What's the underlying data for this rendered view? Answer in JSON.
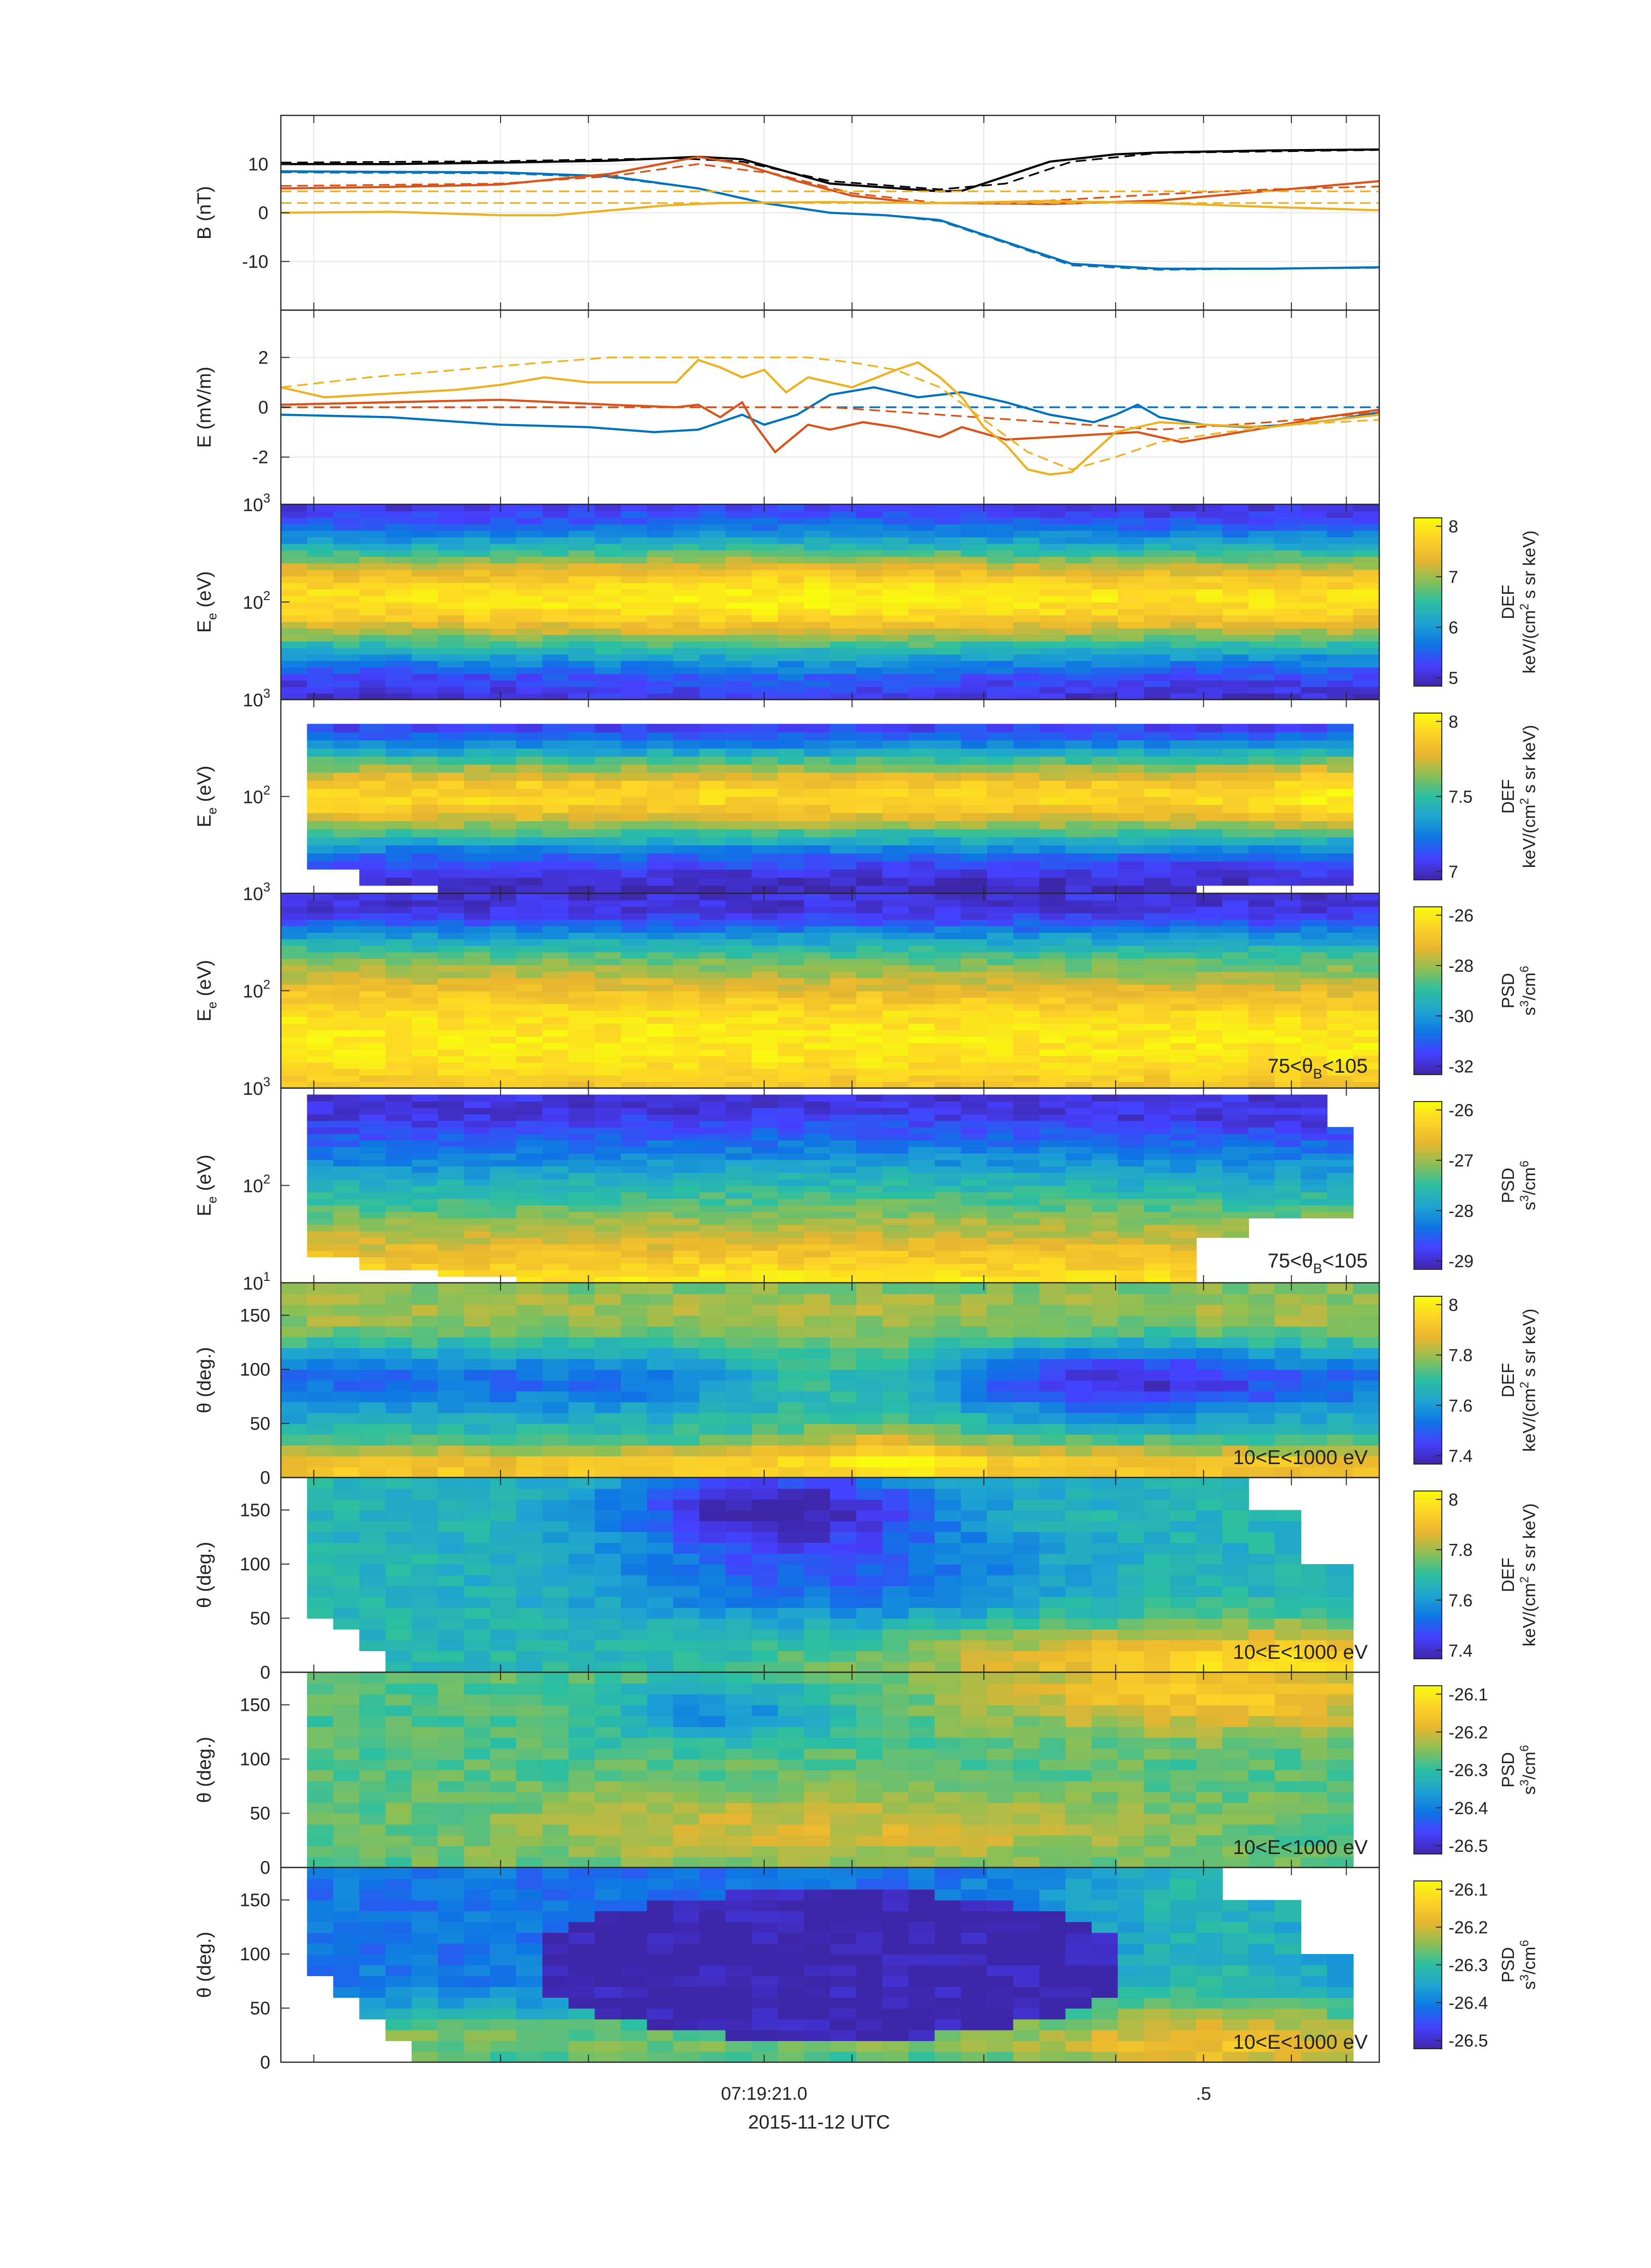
{
  "xaxis": {
    "tick_labels": [
      "07:19:21.0",
      ".5"
    ],
    "label": "2015-11-12 UTC"
  },
  "colors": {
    "bx": "#0072bd",
    "by": "#d95319",
    "bz": "#edb120",
    "bt": "#000000",
    "grid": "#e6e6e6",
    "frame": "#262626"
  },
  "colormap": [
    "#3e26a8",
    "#4640ff",
    "#0f75e5",
    "#1ea4d1",
    "#2bbfa1",
    "#8bbf56",
    "#e8b52f",
    "#fdd327",
    "#f9fb0e"
  ],
  "chart_data": [
    {
      "id": "B",
      "type": "line",
      "ylabel": "B (nT)",
      "yticks": [
        "10",
        "0",
        "-10"
      ],
      "ylim": [
        -20,
        20
      ],
      "series": [
        {
          "color_key": "bt",
          "x": [
            0,
            0.1,
            0.2,
            0.3,
            0.38,
            0.42,
            0.46,
            0.5,
            0.55,
            0.6,
            0.62,
            0.66,
            0.7,
            0.76,
            0.8,
            0.9,
            1.0
          ],
          "values": [
            10,
            10,
            10.3,
            10.7,
            11.5,
            11,
            8.5,
            6,
            5.2,
            4.4,
            4.5,
            7.5,
            10.5,
            12,
            12.4,
            12.8,
            13
          ]
        },
        {
          "color_key": "bt",
          "dashed": true,
          "x": [
            0,
            0.2,
            0.36,
            0.42,
            0.5,
            0.6,
            0.66,
            0.72,
            0.8,
            1.0
          ],
          "values": [
            10.3,
            10.6,
            11.2,
            10.5,
            6.5,
            4.8,
            6,
            10.5,
            12.3,
            12.9
          ]
        },
        {
          "color_key": "bx",
          "x": [
            0,
            0.2,
            0.3,
            0.38,
            0.44,
            0.5,
            0.55,
            0.6,
            0.66,
            0.72,
            0.8,
            0.9,
            1.0
          ],
          "values": [
            8.5,
            8.3,
            7.5,
            5,
            2,
            0,
            -0.5,
            -1.5,
            -6,
            -10.5,
            -11.5,
            -11.5,
            -11.2
          ]
        },
        {
          "color_key": "bx",
          "dashed": true,
          "x": [
            0,
            0.2,
            0.3,
            0.38,
            0.44,
            0.5,
            0.55,
            0.6,
            0.66,
            0.72,
            0.8,
            1.0
          ],
          "values": [
            8.3,
            8.1,
            7.3,
            5,
            2,
            0,
            -0.5,
            -1.7,
            -6.2,
            -10.8,
            -11.7,
            -11.3
          ]
        },
        {
          "color_key": "by",
          "x": [
            0,
            0.1,
            0.2,
            0.3,
            0.38,
            0.42,
            0.47,
            0.52,
            0.58,
            0.62,
            0.7,
            0.8,
            0.9,
            1.0
          ],
          "values": [
            5,
            5.3,
            5.8,
            8,
            11.5,
            10,
            6.5,
            3.5,
            2,
            2,
            1.8,
            2.5,
            4.5,
            6.5
          ]
        },
        {
          "color_key": "by",
          "dashed": true,
          "x": [
            0,
            0.2,
            0.3,
            0.38,
            0.45,
            0.52,
            0.6,
            0.7,
            0.8,
            0.9,
            1.0
          ],
          "values": [
            5.5,
            6,
            7.5,
            10,
            8,
            4,
            2,
            2.5,
            3.8,
            4.8,
            5.4
          ]
        },
        {
          "color_key": "bz",
          "x": [
            0,
            0.1,
            0.2,
            0.25,
            0.3,
            0.35,
            0.4,
            0.5,
            0.6,
            0.7,
            0.8,
            0.9,
            1.0
          ],
          "values": [
            0,
            0.2,
            -0.5,
            -0.5,
            0.5,
            1.5,
            2,
            2.2,
            2,
            2.4,
            2,
            1.2,
            0.5
          ]
        },
        {
          "color_key": "bz",
          "dashed": true,
          "x": [
            0,
            0.2,
            0.4,
            0.6,
            0.8,
            1.0
          ],
          "values": [
            2,
            2,
            2,
            2,
            2,
            2
          ]
        },
        {
          "color_key": "bz",
          "dashed": true,
          "x": [
            0,
            0.4,
            0.8,
            1.0
          ],
          "values": [
            4.4,
            4.4,
            4.4,
            4.4
          ]
        }
      ]
    },
    {
      "id": "E",
      "type": "line",
      "ylabel": "E (mV/m)",
      "yticks": [
        "2",
        "0",
        "-2"
      ],
      "ylim": [
        -3.9,
        3.9
      ],
      "series": [
        {
          "color_key": "bx",
          "x": [
            0,
            0.1,
            0.2,
            0.28,
            0.34,
            0.38,
            0.4,
            0.42,
            0.44,
            0.47,
            0.5,
            0.54,
            0.58,
            0.6,
            0.62,
            0.66,
            0.7,
            0.74,
            0.76,
            0.78,
            0.8,
            0.84,
            0.88,
            0.92,
            0.96,
            1.0
          ],
          "values": [
            -0.3,
            -0.4,
            -0.7,
            -0.8,
            -1,
            -0.9,
            -0.6,
            -0.3,
            -0.7,
            -0.3,
            0.5,
            0.8,
            0.4,
            0.5,
            0.6,
            0.2,
            -0.3,
            -0.6,
            -0.3,
            0.1,
            -0.4,
            -0.7,
            -0.8,
            -0.7,
            -0.5,
            -0.2
          ]
        },
        {
          "color_key": "bx",
          "dashed": true,
          "x": [
            0,
            1.0
          ],
          "values": [
            0,
            0
          ]
        },
        {
          "color_key": "by",
          "x": [
            0,
            0.1,
            0.2,
            0.3,
            0.36,
            0.38,
            0.4,
            0.42,
            0.43,
            0.45,
            0.48,
            0.5,
            0.53,
            0.56,
            0.6,
            0.62,
            0.66,
            0.7,
            0.74,
            0.78,
            0.82,
            0.86,
            0.9,
            0.95,
            1.0
          ],
          "values": [
            0.1,
            0.2,
            0.3,
            0.1,
            0,
            0.1,
            -0.4,
            0.2,
            -0.6,
            -1.8,
            -0.7,
            -0.9,
            -0.6,
            -0.8,
            -1.2,
            -0.8,
            -1.3,
            -1.2,
            -1.1,
            -1,
            -1.4,
            -1.1,
            -0.8,
            -0.4,
            -0.1
          ]
        },
        {
          "color_key": "by",
          "dashed": true,
          "x": [
            0,
            0.3,
            0.5,
            0.6,
            0.7,
            0.8,
            0.9,
            1.0
          ],
          "values": [
            0,
            0,
            0,
            -0.3,
            -0.6,
            -0.9,
            -0.6,
            -0.2
          ]
        },
        {
          "color_key": "bz",
          "x": [
            0,
            0.04,
            0.08,
            0.12,
            0.16,
            0.2,
            0.24,
            0.28,
            0.32,
            0.36,
            0.38,
            0.4,
            0.42,
            0.44,
            0.46,
            0.48,
            0.52,
            0.56,
            0.58,
            0.6,
            0.62,
            0.64,
            0.66,
            0.68,
            0.7,
            0.72,
            0.74,
            0.76,
            0.8,
            0.84,
            0.9,
            0.96,
            1.0
          ],
          "values": [
            0.8,
            0.4,
            0.5,
            0.6,
            0.7,
            0.9,
            1.2,
            1,
            1,
            1,
            1.9,
            1.6,
            1.2,
            1.5,
            0.6,
            1.2,
            0.8,
            1.5,
            1.8,
            1.2,
            0.4,
            -0.8,
            -1.5,
            -2.5,
            -2.7,
            -2.6,
            -1.8,
            -1,
            -0.6,
            -0.7,
            -0.8,
            -0.5,
            -0.3
          ]
        },
        {
          "color_key": "bz",
          "dashed": true,
          "x": [
            0,
            0.08,
            0.16,
            0.24,
            0.3,
            0.36,
            0.42,
            0.48,
            0.52,
            0.56,
            0.6,
            0.64,
            0.68,
            0.72,
            0.76,
            0.8,
            0.86,
            0.92,
            1.0
          ],
          "values": [
            0.8,
            1.2,
            1.5,
            1.8,
            2,
            2,
            2,
            2,
            1.8,
            1.5,
            0.8,
            -0.5,
            -1.8,
            -2.5,
            -2,
            -1.4,
            -1,
            -0.7,
            -0.5
          ]
        }
      ]
    },
    {
      "id": "Ee1",
      "type": "heatmap",
      "ylabel_main": "E",
      "ylabel_sub": "e",
      "ylabel_unit": " (eV)",
      "ytick_bases": [
        "10",
        "10"
      ],
      "ytick_exps": [
        "3",
        "2"
      ],
      "colorbar_ticks": [
        "8",
        "7",
        "6",
        "5"
      ],
      "colorbar_label_1": "DEF",
      "colorbar_label_2": "keV/(cm",
      "colorbar_label_sup": "2",
      "colorbar_label_3": " s sr keV)"
    },
    {
      "id": "Ee2",
      "type": "heatmap",
      "ylabel_main": "E",
      "ylabel_sub": "e",
      "ylabel_unit": " (eV)",
      "ytick_bases": [
        "10",
        "10"
      ],
      "ytick_exps": [
        "3",
        "2"
      ],
      "colorbar_ticks": [
        "8",
        "7.5",
        "7"
      ],
      "colorbar_label_1": "DEF",
      "colorbar_label_2": "keV/(cm",
      "colorbar_label_sup": "2",
      "colorbar_label_3": " s sr keV)"
    },
    {
      "id": "Ee3",
      "type": "heatmap",
      "ylabel_main": "E",
      "ylabel_sub": "e",
      "ylabel_unit": " (eV)",
      "ytick_bases": [
        "10",
        "10"
      ],
      "ytick_exps": [
        "3",
        "2"
      ],
      "colorbar_ticks": [
        "-26",
        "-28",
        "-30",
        "-32"
      ],
      "colorbar_label_1": "PSD",
      "colorbar_label_2": "s",
      "colorbar_label_sup": "3",
      "colorbar_label_3": "/cm",
      "colorbar_label_sup2": "6",
      "annotation_pre": "75<θ",
      "annotation_sub": "B",
      "annotation_post": "<105"
    },
    {
      "id": "Ee4",
      "type": "heatmap",
      "ylabel_main": "E",
      "ylabel_sub": "e",
      "ylabel_unit": " (eV)",
      "ytick_bases": [
        "10",
        "10",
        "10"
      ],
      "ytick_exps": [
        "3",
        "2",
        "1"
      ],
      "colorbar_ticks": [
        "-26",
        "-27",
        "-28",
        "-29"
      ],
      "colorbar_label_1": "PSD",
      "colorbar_label_2": "s",
      "colorbar_label_sup": "3",
      "colorbar_label_3": "/cm",
      "colorbar_label_sup2": "6",
      "annotation_pre": "75<θ",
      "annotation_sub": "B",
      "annotation_post": "<105"
    },
    {
      "id": "th1",
      "type": "heatmap",
      "ylabel": "θ (deg.)",
      "yticks": [
        "150",
        "100",
        "50",
        "0"
      ],
      "colorbar_ticks": [
        "8",
        "7.8",
        "7.6",
        "7.4"
      ],
      "colorbar_label_1": "DEF",
      "colorbar_label_2": "keV/(cm",
      "colorbar_label_sup": "2",
      "colorbar_label_3": " s sr keV)",
      "annotation": "10<E<1000 eV"
    },
    {
      "id": "th2",
      "type": "heatmap",
      "ylabel": "θ (deg.)",
      "yticks": [
        "150",
        "100",
        "50",
        "0"
      ],
      "colorbar_ticks": [
        "8",
        "7.8",
        "7.6",
        "7.4"
      ],
      "colorbar_label_1": "DEF",
      "colorbar_label_2": "keV/(cm",
      "colorbar_label_sup": "2",
      "colorbar_label_3": " s sr keV)",
      "annotation": "10<E<1000 eV"
    },
    {
      "id": "th3",
      "type": "heatmap",
      "ylabel": "θ (deg.)",
      "yticks": [
        "150",
        "100",
        "50",
        "0"
      ],
      "colorbar_ticks": [
        "-26.1",
        "-26.2",
        "-26.3",
        "-26.4",
        "-26.5"
      ],
      "colorbar_label_1": "PSD",
      "colorbar_label_2": "s",
      "colorbar_label_sup": "3",
      "colorbar_label_3": "/cm",
      "colorbar_label_sup2": "6",
      "annotation": "10<E<1000 eV"
    },
    {
      "id": "th4",
      "type": "heatmap",
      "ylabel": "θ (deg.)",
      "yticks": [
        "150",
        "100",
        "50",
        "0"
      ],
      "colorbar_ticks": [
        "-26.1",
        "-26.2",
        "-26.3",
        "-26.4",
        "-26.5"
      ],
      "colorbar_label_1": "PSD",
      "colorbar_label_2": "s",
      "colorbar_label_sup": "3",
      "colorbar_label_3": "/cm",
      "colorbar_label_sup2": "6",
      "annotation": "10<E<1000 eV"
    }
  ]
}
